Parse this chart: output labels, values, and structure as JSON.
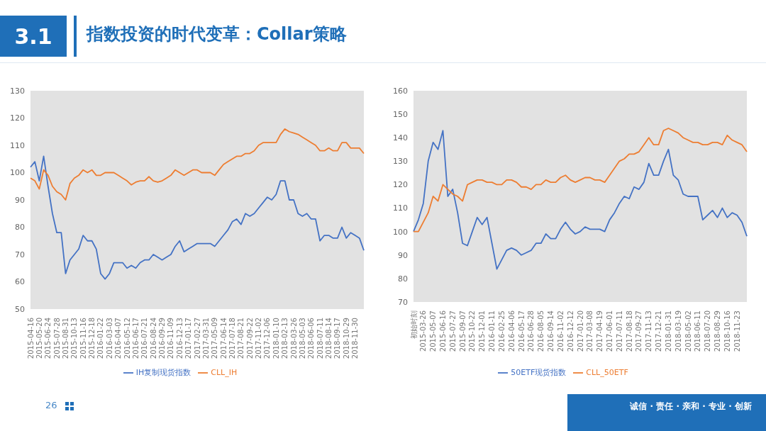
{
  "chart_data": [
    {
      "type": "line",
      "title": "指数投资的时代变革：Collar策略",
      "annotations": [
        "3.1",
        "26"
      ],
      "categories": [
        "2015-04-16",
        null,
        "2015-05-20",
        null,
        "2015-06-24",
        null,
        "2015-07-28",
        null,
        "2015-08-31",
        null,
        "2015-10-13",
        null,
        "2015-11-16",
        null,
        "2015-12-18",
        null,
        "2016-01-22",
        null,
        "2016-03-03",
        null,
        "2016-04-07",
        null,
        "2016-05-12",
        null,
        "2016-06-17",
        null,
        "2016-07-21",
        null,
        "2016-08-24",
        null,
        "2016-09-29",
        null,
        "2016-11-09",
        null,
        "2016-12-13",
        null,
        "2017-01-17",
        null,
        "2017-02-27",
        null,
        "2017-03-31",
        null,
        "2017-05-09",
        null,
        "2017-06-14",
        null,
        "2017-07-18",
        null,
        "2017-08-21",
        null,
        "2017-09-22",
        null,
        "2017-11-02",
        null,
        "2017-12-06",
        null,
        "2018-01-10",
        null,
        "2018-02-13",
        null,
        "2018-03-26",
        null,
        "2018-05-03",
        null,
        "2018-06-06",
        null,
        "2018-07-11",
        null,
        "2018-08-14",
        null,
        "2018-09-17",
        null,
        "2018-10-29",
        null,
        "2018-11-30",
        null,
        null
      ],
      "series": [
        {
          "name": "IH复制现货指数",
          "color": "#4472c4",
          "values": [
            102,
            104,
            97,
            106,
            95,
            85,
            78,
            78,
            63,
            68,
            70,
            72,
            77,
            75,
            75,
            72,
            63,
            61,
            63,
            67,
            67,
            67,
            65,
            66,
            65,
            67,
            68,
            68,
            70,
            69,
            68,
            69,
            70,
            73,
            75,
            71,
            72,
            73,
            74,
            74,
            74,
            74,
            73,
            75,
            77,
            79,
            82,
            83,
            81,
            85,
            84,
            85,
            87,
            89,
            91,
            90,
            92,
            97,
            97,
            90,
            90,
            85,
            84,
            85,
            83,
            83,
            75,
            77,
            77,
            76,
            76,
            80,
            76,
            78,
            77,
            76,
            71.5
          ]
        },
        {
          "name": "CLL_IH",
          "color": "#ed7d31",
          "values": [
            98,
            97,
            94,
            101,
            99,
            95,
            93,
            92,
            90,
            96,
            98,
            99,
            101,
            100,
            101,
            99,
            99,
            100,
            100,
            100,
            99,
            98,
            97,
            95.5,
            96.5,
            97,
            97,
            98.5,
            97,
            96.5,
            97,
            98,
            99,
            101,
            100,
            99,
            100,
            101,
            101,
            100,
            100,
            100,
            99,
            101,
            103,
            104,
            105,
            106,
            106,
            107,
            107,
            108,
            110,
            111,
            111,
            111,
            111,
            114,
            116,
            115,
            114.5,
            114,
            113,
            112,
            111,
            110,
            108,
            108,
            109,
            108,
            108,
            111,
            111,
            109,
            109,
            109,
            107
          ]
        }
      ],
      "ylim": [
        50,
        130
      ],
      "yticks": [
        50,
        60,
        70,
        80,
        90,
        100,
        110,
        120,
        130
      ],
      "legend": "bottom",
      "marker": "none",
      "line_style": "solid"
    },
    {
      "type": "line",
      "annotations": [
        "诚信 · 责任 · 亲和 · 专业 · 创新"
      ],
      "categories": [
        "初始时刻",
        null,
        "2015-03-26",
        null,
        "2015-05-07",
        null,
        "2015-06-16",
        null,
        "2015-07-27",
        null,
        "2015-09-07",
        null,
        "2015-10-22",
        null,
        "2015-12-01",
        null,
        "2016-01-11",
        null,
        "2016-02-25",
        null,
        "2016-04-06",
        null,
        "2016-05-17",
        null,
        "2016-06-28",
        null,
        "2016-08-05",
        null,
        "2016-09-14",
        null,
        "2016-11-02",
        null,
        "2016-12-12",
        null,
        "2017-01-20",
        null,
        "2017-03-08",
        null,
        "2017-04-19",
        null,
        "2017-06-01",
        null,
        "2017-07-11",
        null,
        "2017-08-18",
        null,
        "2017-09-27",
        null,
        "2017-11-13",
        null,
        "2017-12-21",
        null,
        "2018-01-31",
        null,
        "2018-03-19",
        null,
        "2018-05-02",
        null,
        "2018-06-11",
        null,
        "2018-07-20",
        null,
        "2018-08-29",
        null,
        "2018-10-16",
        null,
        "2018-11-23",
        null,
        null
      ],
      "series": [
        {
          "name": "50ETF现货指数",
          "color": "#4472c4",
          "values": [
            100,
            105,
            112,
            130,
            138,
            135,
            143,
            115,
            118,
            108,
            95,
            94,
            100,
            106,
            103,
            106,
            95,
            84,
            88,
            92,
            93,
            92,
            90,
            91,
            92,
            95,
            95,
            99,
            97,
            97,
            101,
            104,
            101,
            99,
            100,
            102,
            101,
            101,
            101,
            100,
            105,
            108,
            112,
            115,
            114,
            119,
            118,
            121,
            129,
            124,
            124,
            130,
            135,
            124,
            122,
            116,
            115,
            115,
            115,
            105,
            107,
            109,
            106,
            110,
            106,
            108,
            107,
            104,
            98
          ]
        },
        {
          "name": "CLL_50ETF",
          "color": "#ed7d31",
          "values": [
            100,
            100,
            104,
            108,
            115,
            113,
            120,
            118,
            116,
            115,
            113,
            120,
            121,
            122,
            122,
            121,
            121,
            120,
            120,
            122,
            122,
            121,
            119,
            119,
            118,
            120,
            120,
            122,
            121,
            121,
            123,
            124,
            122,
            121,
            122,
            123,
            123,
            122,
            122,
            121,
            124,
            127,
            130,
            131,
            133,
            133,
            134,
            137,
            140,
            137,
            137,
            143,
            144,
            143,
            142,
            140,
            139,
            138,
            138,
            137,
            137,
            138,
            138,
            137,
            141,
            139,
            138,
            137,
            134
          ]
        }
      ],
      "ylim": [
        70,
        160
      ],
      "yticks": [
        70,
        80,
        90,
        100,
        110,
        120,
        130,
        140,
        150,
        160
      ],
      "legend": "bottom",
      "marker": "none",
      "line_style": "solid"
    }
  ]
}
